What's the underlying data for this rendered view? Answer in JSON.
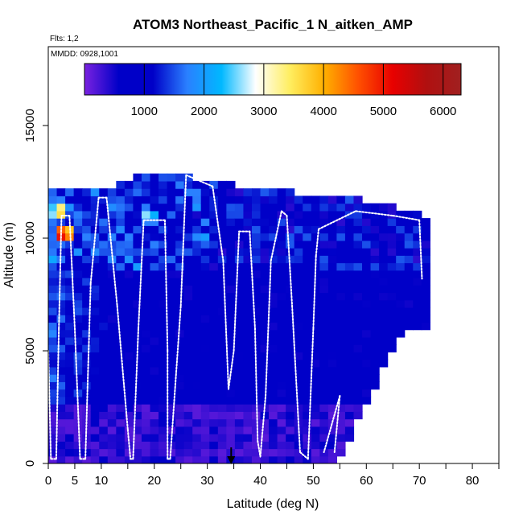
{
  "chart_data": {
    "type": "heatmap",
    "title": "ATOM3 Northeast_Pacific_1 N_aitken_AMP",
    "flights_label": "Flts: 1,2",
    "date_label": "MMDD: 0928,1001",
    "xlabel": "Latitude (deg N)",
    "ylabel": "Altitude (m)",
    "xlim": [
      0,
      85
    ],
    "ylim": [
      0,
      18500
    ],
    "x_ticks": [
      0,
      5,
      10,
      20,
      30,
      40,
      50,
      60,
      70,
      80
    ],
    "x_tick_labels": [
      "0",
      "5",
      "10",
      "20",
      "30",
      "40",
      "50",
      "60",
      "70",
      "80"
    ],
    "y_ticks": [
      0,
      5000,
      10000,
      15000
    ],
    "y_tick_labels": [
      "0",
      "5000",
      "10000",
      "15000"
    ],
    "colorbar": {
      "range": [
        0,
        6300
      ],
      "ticks": [
        1000,
        2000,
        3000,
        4000,
        5000,
        6000
      ],
      "tick_labels": [
        "1000",
        "2000",
        "3000",
        "4000",
        "5000",
        "6000"
      ],
      "colors": [
        "#7a22e0",
        "#0000c8",
        "#0000c8",
        "#2a80ff",
        "#00b8ff",
        "#ffffff",
        "#ffee60",
        "#ffb000",
        "#ff5000",
        "#e80000",
        "#b01010",
        "#a02020"
      ]
    },
    "marker_latitude": 34.5,
    "grid": false,
    "data_extent": {
      "lat_min": 0,
      "lat_max": 71,
      "alt_max_by_lat": [
        [
          0,
          12000
        ],
        [
          10,
          12000
        ],
        [
          20,
          12800
        ],
        [
          30,
          12400
        ],
        [
          40,
          12000
        ],
        [
          52,
          11800
        ],
        [
          65,
          11300
        ],
        [
          71,
          10800
        ]
      ],
      "alt_min_by_lat": [
        [
          54,
          0
        ],
        [
          60,
          2800
        ],
        [
          64,
          4800
        ],
        [
          66,
          5800
        ],
        [
          71,
          6200
        ]
      ]
    },
    "hotspots": [
      {
        "lat": 3,
        "alt": 10200,
        "value": 6100
      },
      {
        "lat": 2,
        "alt": 11200,
        "value": 4200
      },
      {
        "lat": 19,
        "alt": 11000,
        "value": 2900
      },
      {
        "lat": 1,
        "alt": 9000,
        "value": 2200
      }
    ],
    "flight_track": [
      [
        0,
        5000
      ],
      [
        0.5,
        200
      ],
      [
        1.5,
        200
      ],
      [
        2,
        6000
      ],
      [
        2.5,
        11000
      ],
      [
        4,
        11000
      ],
      [
        5,
        6000
      ],
      [
        6,
        200
      ],
      [
        7,
        200
      ],
      [
        8,
        8000
      ],
      [
        9.5,
        11800
      ],
      [
        11,
        11800
      ],
      [
        13,
        7000
      ],
      [
        15,
        1500
      ],
      [
        15.5,
        200
      ],
      [
        16,
        200
      ],
      [
        17,
        6000
      ],
      [
        18,
        10800
      ],
      [
        22,
        10800
      ],
      [
        22.5,
        5000
      ],
      [
        22.5,
        200
      ],
      [
        23,
        200
      ],
      [
        25,
        7000
      ],
      [
        26,
        12800
      ],
      [
        28,
        12600
      ],
      [
        31,
        12300
      ],
      [
        33,
        9000
      ],
      [
        34,
        3300
      ],
      [
        35,
        5000
      ],
      [
        36,
        10300
      ],
      [
        38,
        10300
      ],
      [
        39,
        6000
      ],
      [
        39.5,
        1000
      ],
      [
        40,
        300
      ],
      [
        41,
        3000
      ],
      [
        42,
        9000
      ],
      [
        44,
        11200
      ],
      [
        45,
        11000
      ],
      [
        46,
        7000
      ],
      [
        47.5,
        500
      ],
      [
        49,
        200
      ],
      [
        50,
        6000
      ],
      [
        50.5,
        9200
      ],
      [
        51,
        10400
      ],
      [
        58,
        11200
      ],
      [
        65,
        11000
      ],
      [
        70,
        10800
      ],
      [
        70.5,
        8200
      ],
      [
        54,
        500
      ],
      [
        55,
        3000
      ],
      [
        52,
        500
      ]
    ]
  }
}
